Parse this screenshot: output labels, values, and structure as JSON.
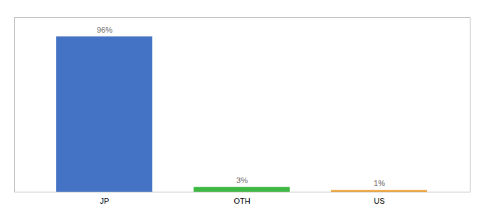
{
  "chart_data": {
    "type": "bar",
    "categories": [
      "JP",
      "OTH",
      "US"
    ],
    "values": [
      96,
      3,
      1
    ],
    "value_labels": [
      "96%",
      "3%",
      "1%"
    ],
    "colors": [
      "#4472c4",
      "#3cb843",
      "#f0a030"
    ],
    "ylim": [
      0,
      108
    ],
    "data_labels": true,
    "tick_labels": "x",
    "grid": false
  }
}
